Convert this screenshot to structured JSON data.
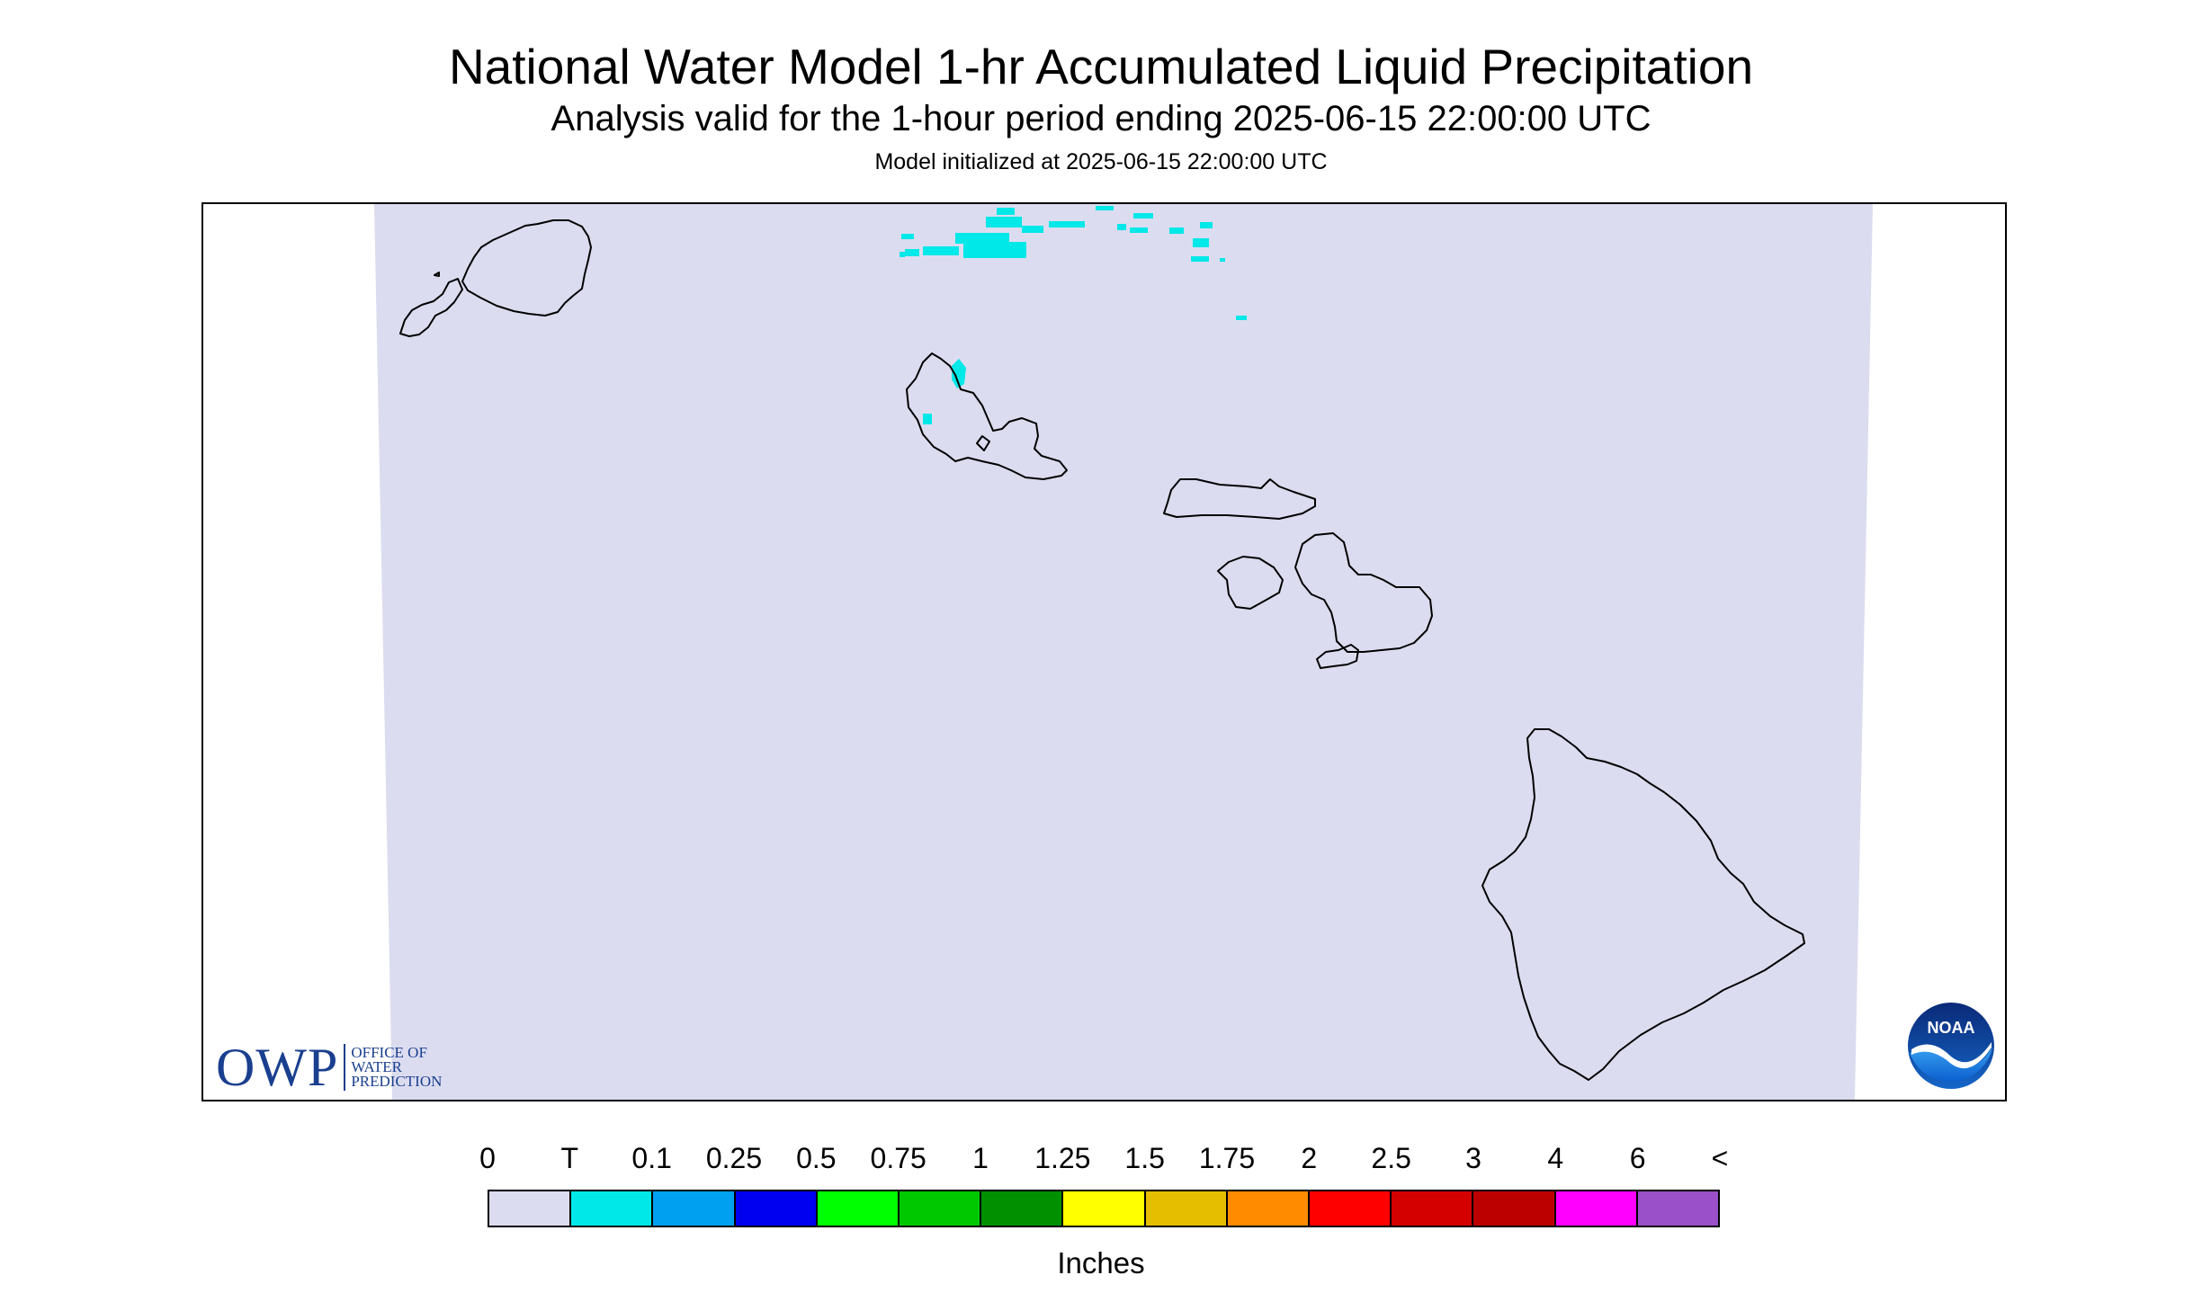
{
  "header": {
    "title": "National Water Model 1-hr Accumulated Liquid Precipitation",
    "subtitle": "Analysis valid for the 1-hour period ending 2025-06-15 22:00:00 UTC",
    "init_line": "Model initialized at 2025-06-15 22:00:00 UTC"
  },
  "map": {
    "region": "Hawaiian Islands",
    "field": "1-hr accumulated liquid precipitation",
    "background_color": "#dcdcf0",
    "precip_color": "#00e8e8",
    "outline_color": "#000000",
    "precip_present": "trace amounts north of Kauai/Oahu channel and over Oahu"
  },
  "logos": {
    "owp": {
      "letters": "OWP",
      "line1": "OFFICE OF",
      "line2": "WATER",
      "line3": "PREDICTION"
    },
    "noaa": {
      "letters": "NOAA"
    }
  },
  "legend": {
    "units": "Inches",
    "tick_labels": [
      "0",
      "T",
      "0.1",
      "0.25",
      "0.5",
      "0.75",
      "1",
      "1.25",
      "1.5",
      "1.75",
      "2",
      "2.5",
      "3",
      "4",
      "6",
      "<"
    ],
    "colors": [
      "#dcdcf0",
      "#00e8e8",
      "#00a0f0",
      "#0000f0",
      "#00ff00",
      "#00c800",
      "#009000",
      "#ffff00",
      "#e6be00",
      "#ff8c00",
      "#ff0000",
      "#d40000",
      "#bc0000",
      "#ff00ff",
      "#9a50c8"
    ]
  }
}
